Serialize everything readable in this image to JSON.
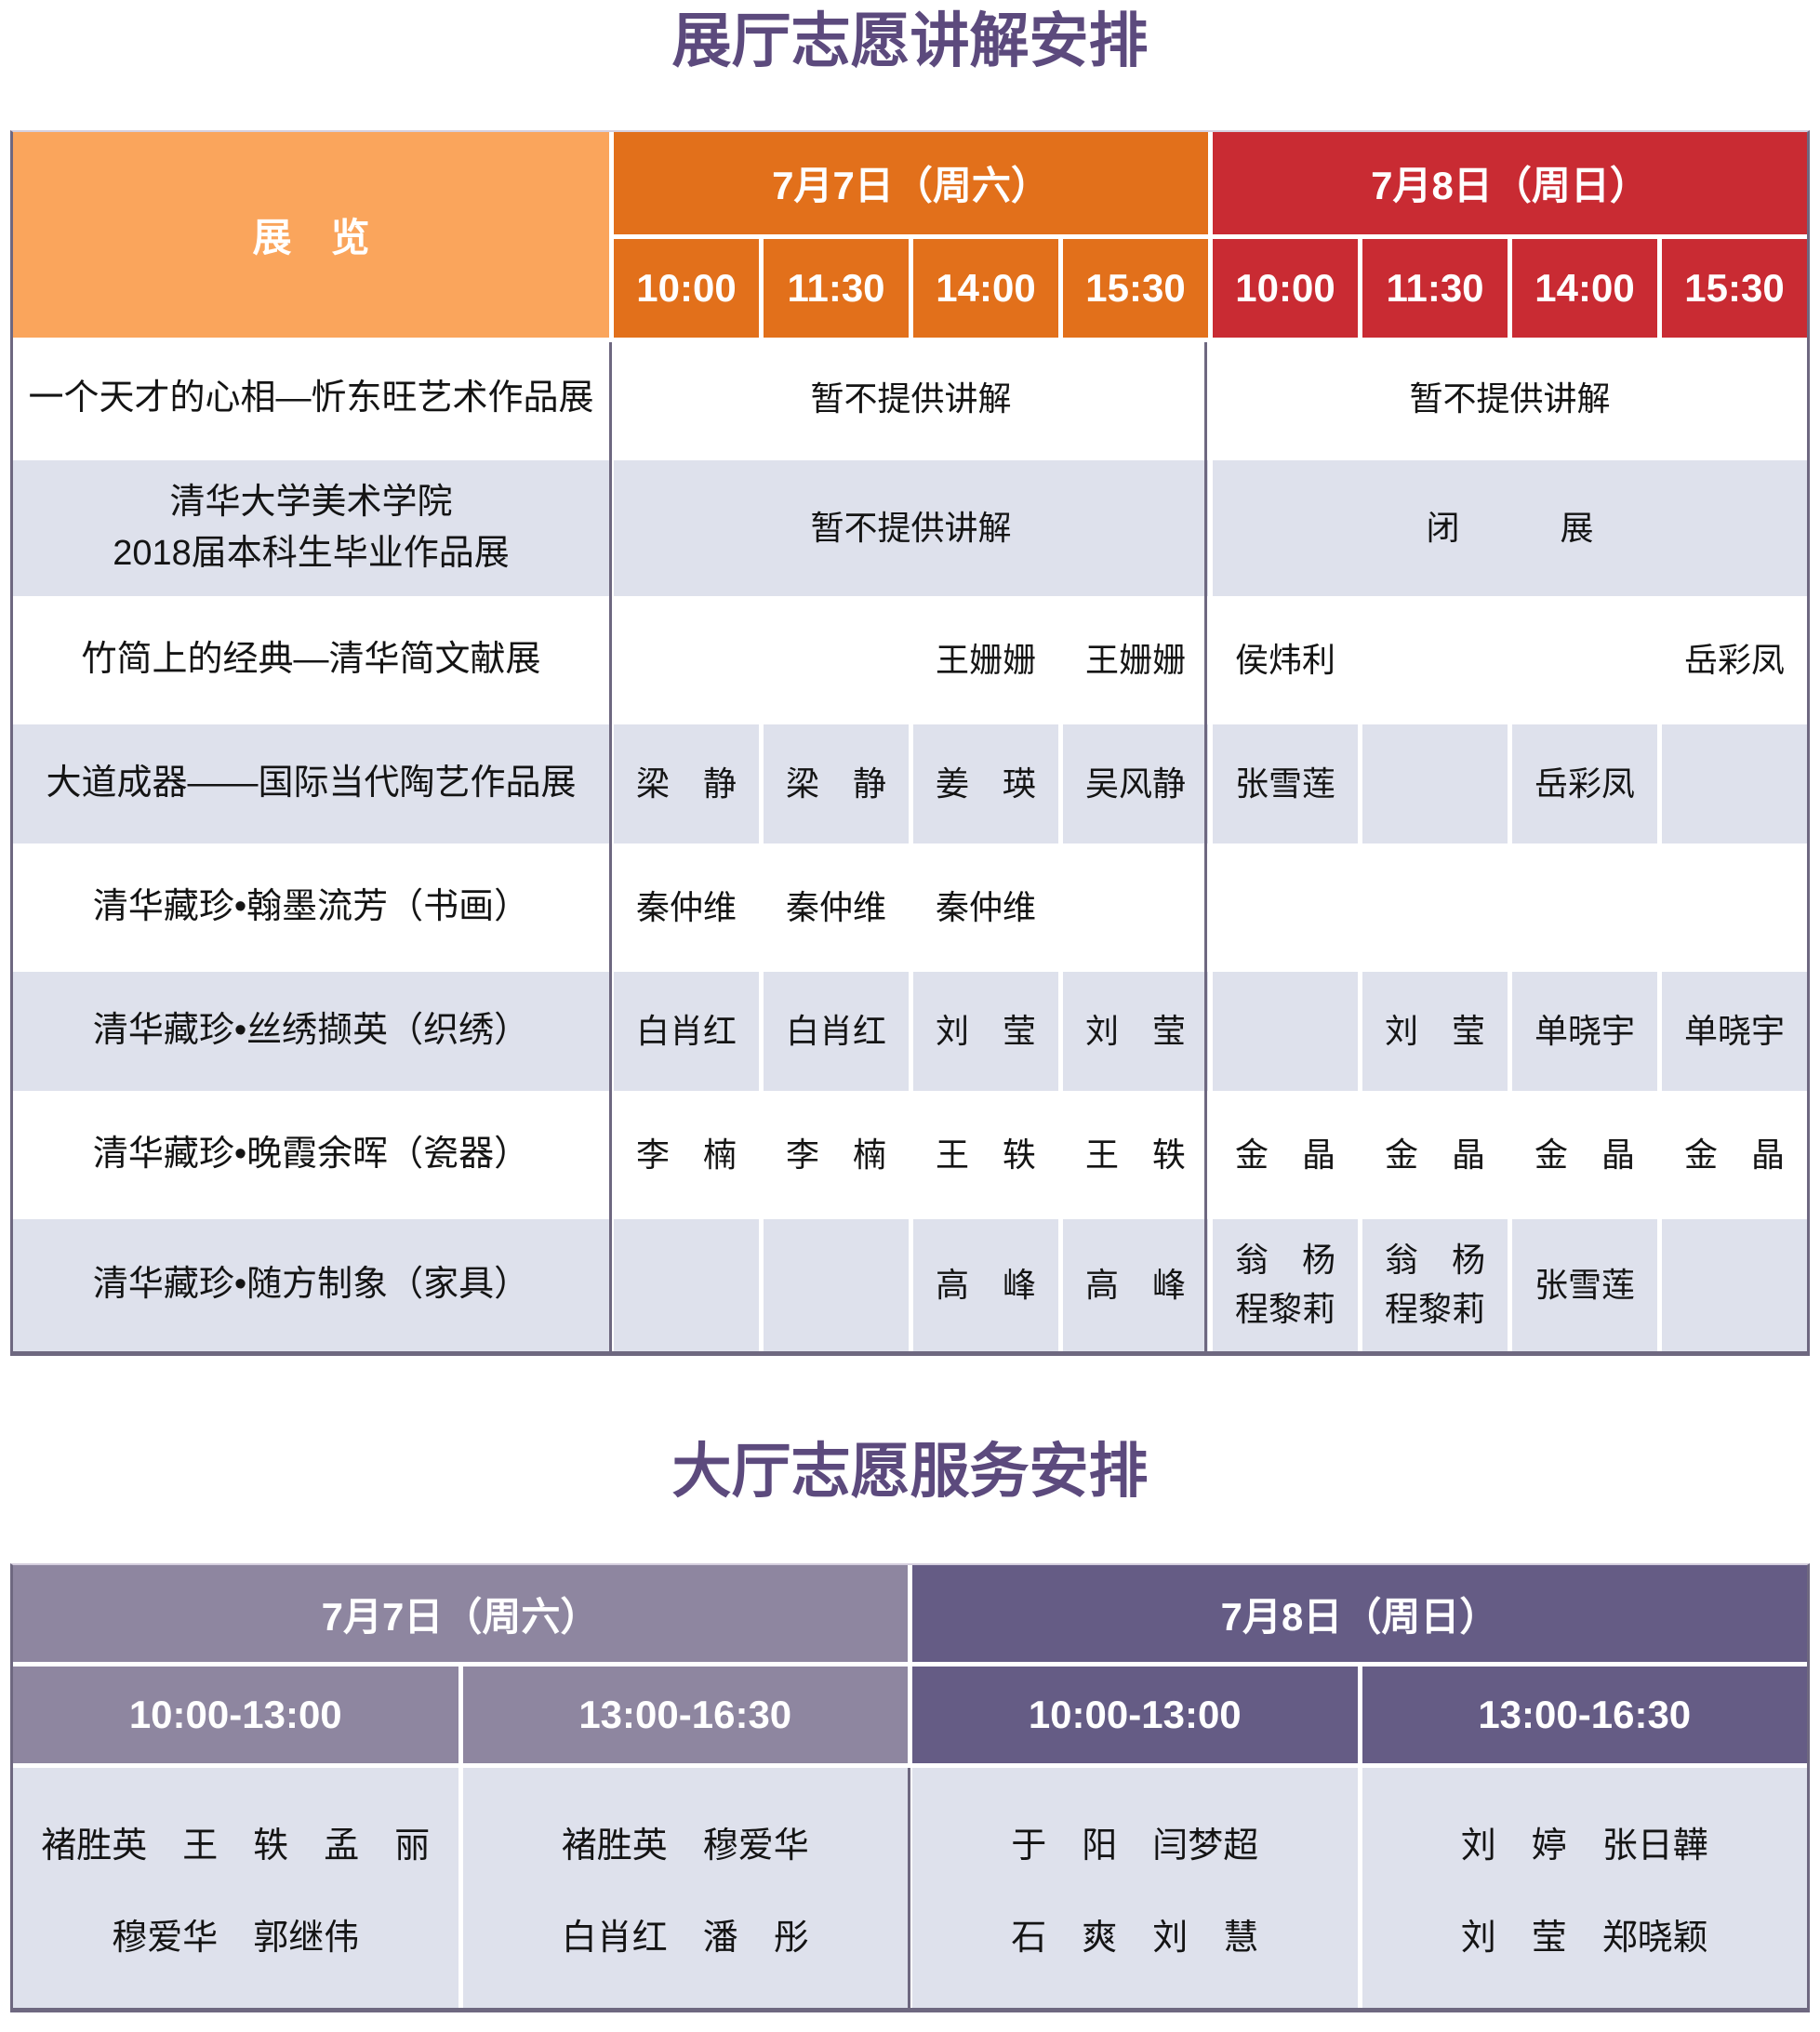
{
  "colors": {
    "title_purple": "#5C4A7D",
    "exhibition_header_orange": "#FAA55C",
    "saturday_orange": "#E2701B",
    "sunday_red": "#C92B33",
    "lobby_saturday_mauve": "#8E86A0",
    "lobby_sunday_purple": "#655C85",
    "row_lavender": "#DEE1EC",
    "table_border": "#6E6880"
  },
  "table1": {
    "title": "展厅志愿讲解安排",
    "exhibition_header": "展　览",
    "days": [
      {
        "label": "7月7日（周六）",
        "times": [
          "10:00",
          "11:30",
          "14:00",
          "15:30"
        ]
      },
      {
        "label": "7月8日（周日）",
        "times": [
          "10:00",
          "11:30",
          "14:00",
          "15:30"
        ]
      }
    ],
    "rows": [
      {
        "name": "一个天才的心相—忻东旺艺术作品展",
        "sat": "暂不提供讲解",
        "sun": "暂不提供讲解"
      },
      {
        "name": "清华大学美术学院\n2018届本科生毕业作品展",
        "sat": "暂不提供讲解",
        "sun": "闭　　　展"
      },
      {
        "name": "竹简上的经典—清华简文献展",
        "cells": [
          "",
          "",
          "王姗姗",
          "王姗姗",
          "侯炜利",
          "",
          "",
          "岳彩凤"
        ]
      },
      {
        "name": "大道成器——国际当代陶艺作品展",
        "cells": [
          "梁　静",
          "梁　静",
          "姜　瑛",
          "吴风静",
          "张雪莲",
          "",
          "岳彩凤",
          ""
        ]
      },
      {
        "name": "清华藏珍•翰墨流芳（书画）",
        "cells": [
          "秦仲维",
          "秦仲维",
          "秦仲维",
          "",
          "",
          "",
          "",
          ""
        ]
      },
      {
        "name": "清华藏珍•丝绣撷英（织绣）",
        "cells": [
          "白肖红",
          "白肖红",
          "刘　莹",
          "刘　莹",
          "",
          "刘　莹",
          "单晓宇",
          "单晓宇"
        ]
      },
      {
        "name": "清华藏珍•晚霞余晖（瓷器）",
        "cells": [
          "李　楠",
          "李　楠",
          "王　轶",
          "王　轶",
          "金　晶",
          "金　晶",
          "金　晶",
          "金　晶"
        ]
      },
      {
        "name": "清华藏珍•随方制象（家具）",
        "cells": [
          "",
          "",
          "高　峰",
          "高　峰",
          "翁　杨\n程黎莉",
          "翁　杨\n程黎莉",
          "张雪莲",
          ""
        ]
      }
    ]
  },
  "table2": {
    "title": "大厅志愿服务安排",
    "days": [
      {
        "label": "7月7日（周六）",
        "slots": [
          {
            "time": "10:00-13:00",
            "names": [
              "褚胜英　王　轶　孟　丽",
              "穆爱华　郭继伟"
            ]
          },
          {
            "time": "13:00-16:30",
            "names": [
              "褚胜英　穆爱华",
              "白肖红　潘　彤"
            ]
          }
        ]
      },
      {
        "label": "7月8日（周日）",
        "slots": [
          {
            "time": "10:00-13:00",
            "names": [
              "于　阳　闫梦超",
              "石　爽　刘　慧"
            ]
          },
          {
            "time": "13:00-16:30",
            "names": [
              "刘　婷　张日韡",
              "刘　莹　郑晓颖"
            ]
          }
        ]
      }
    ]
  }
}
